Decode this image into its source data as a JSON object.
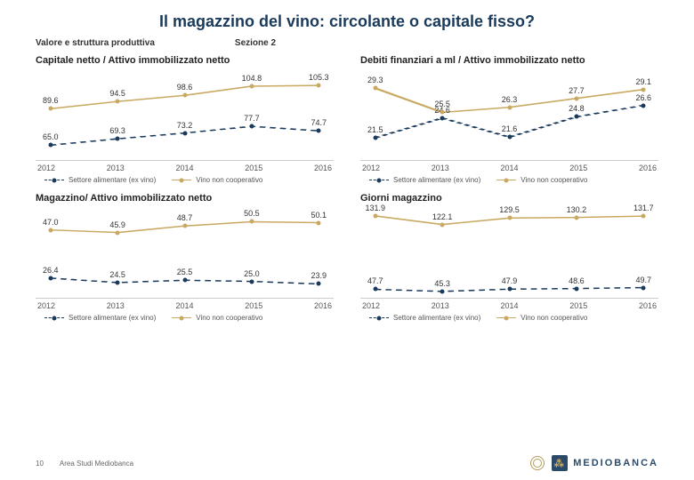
{
  "title": "Il magazzino del vino: circolante o capitale fisso?",
  "meta_left": "Valore e struttura produttiva",
  "meta_right": "Sezione 2",
  "page_number": "10",
  "footer_text": "Area Studi Mediobanca",
  "logo_text": "MEDIOBANCA",
  "legend": {
    "s1": "Settore alimentare (ex vino)",
    "s2": "Vino non cooperativo"
  },
  "xlabels": [
    "2012",
    "2013",
    "2014",
    "2015",
    "2016"
  ],
  "colors": {
    "s1": "#1a3a5c",
    "s2": "#c9a961",
    "axis": "#cccccc",
    "bg": "#ffffff"
  },
  "charts": [
    {
      "title": "Capitale netto / Attivo immobilizzato netto",
      "ylim": [
        55,
        115
      ],
      "s1": [
        65.0,
        69.3,
        73.2,
        77.7,
        74.7
      ],
      "s2": [
        89.6,
        94.5,
        98.6,
        104.8,
        105.3
      ]
    },
    {
      "title": "Debiti finanziari a ml / Attivo immobilizzato netto",
      "ylim": [
        18,
        32
      ],
      "s1": [
        21.5,
        24.6,
        21.6,
        24.8,
        26.6
      ],
      "s2": [
        29.3,
        25.5,
        26.3,
        27.7,
        29.1
      ]
    },
    {
      "title": "Magazzino/ Attivo immobilizzato netto",
      "ylim": [
        18,
        56
      ],
      "s1": [
        26.4,
        24.5,
        25.5,
        25.0,
        23.9
      ],
      "s2": [
        47.0,
        45.9,
        48.7,
        50.5,
        50.1
      ]
    },
    {
      "title": "Giorni magazzino",
      "ylim": [
        38,
        140
      ],
      "s1": [
        47.7,
        45.3,
        47.9,
        48.6,
        49.7
      ],
      "s2": [
        131.9,
        122.1,
        129.5,
        130.2,
        131.7
      ]
    }
  ]
}
